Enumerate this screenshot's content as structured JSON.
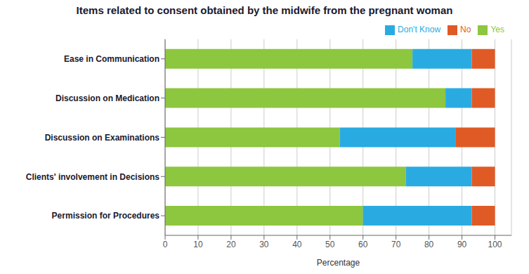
{
  "chart_data": {
    "type": "bar",
    "orientation": "horizontal",
    "stacked": true,
    "title": "Items related to consent obtained by the midwife from the pregnant woman",
    "categories": [
      "Ease in Communication",
      "Discussion on Medication",
      "Discussion on Examinations",
      "Clients' involvement in Decisions",
      "Permission for Procedures"
    ],
    "series": [
      {
        "name": "Yes",
        "color": "#8DC63F",
        "values": [
          75,
          85,
          53,
          73,
          60
        ]
      },
      {
        "name": "Don't Know",
        "color": "#29ABE2",
        "values": [
          18,
          8,
          35,
          20,
          33
        ]
      },
      {
        "name": "No",
        "color": "#E05A26",
        "values": [
          7,
          7,
          12,
          7,
          7
        ]
      }
    ],
    "xlabel": "Percentage",
    "xlim": [
      0,
      105
    ],
    "xticks": [
      0,
      10,
      20,
      30,
      40,
      50,
      60,
      70,
      80,
      90,
      100
    ],
    "grid": true,
    "legend": "upper right"
  }
}
